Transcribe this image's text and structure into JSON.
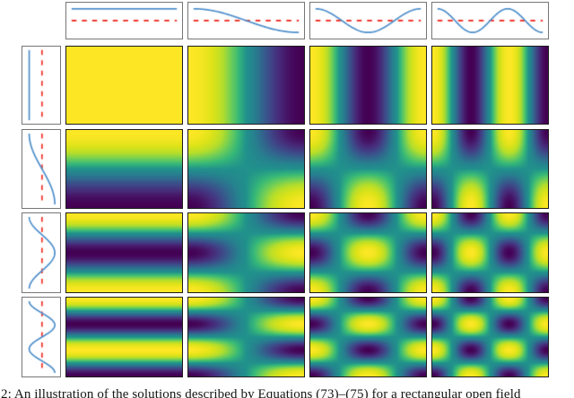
{
  "caption": {
    "text": "2: An illustration of the solutions described by Equations (73)–(75) for a rectangular open field"
  },
  "chart_data": {
    "type": "heatmap",
    "title": "",
    "description": "4x4 grid of 2D standing-wave patterns cos(n*pi*x/W)*cos(m*pi*y/H) for mode numbers n (columns) and m (rows) from 0 to 3, with 1D marginal mode curves along the top (x modes) and left (y modes). Value +1 at the top-left corner of each map.",
    "x_modes": [
      0,
      1,
      2,
      3
    ],
    "y_modes": [
      0,
      1,
      2,
      3
    ],
    "mode_function": "cos(n*pi*t), t in [0,1]",
    "value_range": [
      -1,
      1
    ],
    "grid": {
      "rows": 4,
      "cols": 4
    },
    "colormap": "viridis",
    "viridis_anchors": [
      "#440154",
      "#482878",
      "#3e4a89",
      "#31688e",
      "#26828e",
      "#21918c",
      "#35b779",
      "#6ece58",
      "#b5de2b",
      "#dde318",
      "#fde725"
    ],
    "marginals": {
      "curve_color": "#4e8fcb",
      "zero_line_color": "#f23a31",
      "zero_line_style": "dashed",
      "frame_color": "#767676"
    },
    "heatmap_frame_color": "#1b1b1b",
    "legend": "none",
    "axes_ticks": "none"
  }
}
